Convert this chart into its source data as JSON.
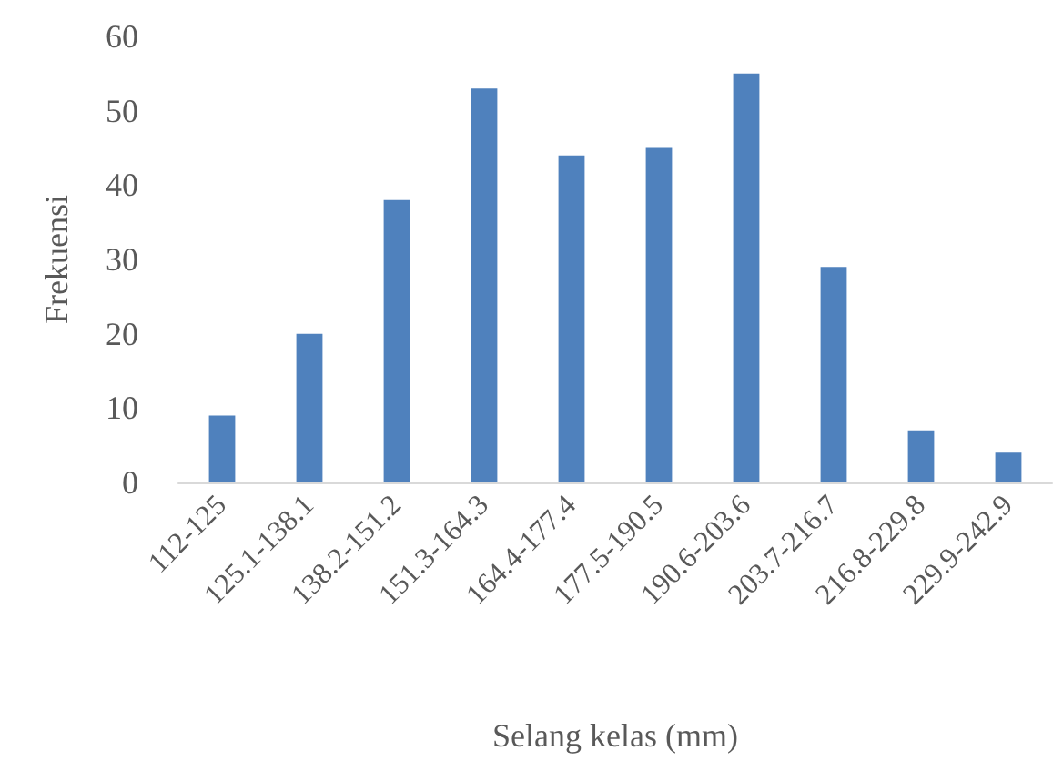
{
  "chart_data": {
    "type": "bar",
    "xlabel": "Selang kelas (mm)",
    "ylabel": "Frekuensi",
    "categories": [
      "112-125",
      "125.1-138.1",
      "138.2-151.2",
      "151.3-164.3",
      "164.4-177.4",
      "177.5-190.5",
      "190.6-203.6",
      "203.7-216.7",
      "216.8-229.8",
      "229.9-242.9"
    ],
    "values": [
      9,
      20,
      38,
      53,
      44,
      45,
      55,
      29,
      7,
      4
    ],
    "color": "#4f81bd",
    "ylim": [
      0,
      60
    ],
    "yticks": [
      0,
      10,
      20,
      30,
      40,
      50,
      60
    ],
    "grid": false
  }
}
